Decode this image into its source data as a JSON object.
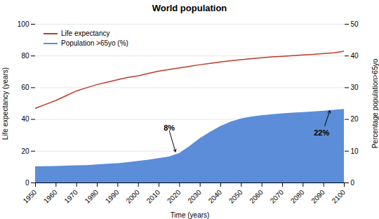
{
  "chart_data": {
    "type": "line",
    "title": "World population",
    "xlabel": "Time (years)",
    "ylabel": "Life expectancy (years)",
    "y2label": "Percentage population>65yo",
    "x": [
      1950,
      1955,
      1960,
      1965,
      1970,
      1975,
      1980,
      1985,
      1990,
      1995,
      2000,
      2005,
      2010,
      2015,
      2020,
      2025,
      2030,
      2035,
      2040,
      2045,
      2050,
      2055,
      2060,
      2065,
      2070,
      2075,
      2080,
      2085,
      2090,
      2095,
      2100
    ],
    "series": [
      {
        "name": "Life expectancy",
        "type": "line",
        "color": "#c0392b",
        "values": [
          47,
          49.5,
          52,
          55,
          58,
          60,
          62,
          63.5,
          65,
          66.5,
          67.5,
          69,
          70.5,
          71.5,
          72.5,
          73.5,
          74.5,
          75.3,
          76.2,
          77.0,
          77.7,
          78.3,
          78.9,
          79.4,
          79.8,
          80.2,
          80.6,
          81.0,
          81.5,
          82.0,
          83.0
        ]
      },
      {
        "name": "Population >65yo (%)",
        "type": "area",
        "axis": "y2",
        "color": "#5b8dd9",
        "values": [
          5.1,
          5.15,
          5.2,
          5.3,
          5.4,
          5.5,
          5.7,
          5.9,
          6.1,
          6.4,
          6.8,
          7.2,
          7.7,
          8.2,
          9.3,
          11.5,
          14.0,
          16.0,
          17.8,
          19.2,
          20.2,
          20.8,
          21.2,
          21.5,
          21.8,
          22.0,
          22.2,
          22.4,
          22.6,
          22.9,
          23.2
        ]
      }
    ],
    "xlim": [
      1950,
      2100
    ],
    "xticks": [
      1950,
      1960,
      1970,
      1980,
      1990,
      2000,
      2010,
      2020,
      2030,
      2040,
      2050,
      2060,
      2070,
      2080,
      2090,
      2100
    ],
    "ylim": [
      0,
      100
    ],
    "yticks": [
      0,
      20,
      40,
      60,
      80,
      100
    ],
    "y2lim": [
      0,
      50
    ],
    "y2ticks": [
      0,
      10,
      20,
      30,
      40,
      50
    ],
    "grid": true,
    "legend": "upper left",
    "annotations": [
      {
        "text": "8%",
        "x": 2015,
        "y": 16.5,
        "x_arrow": 2018,
        "y_arrow": 9.8,
        "axis": "y2"
      },
      {
        "text": "22%",
        "x": 2089,
        "y": 15.0,
        "x_arrow": 2093,
        "y_arrow": 22.8,
        "axis": "y2"
      }
    ]
  }
}
